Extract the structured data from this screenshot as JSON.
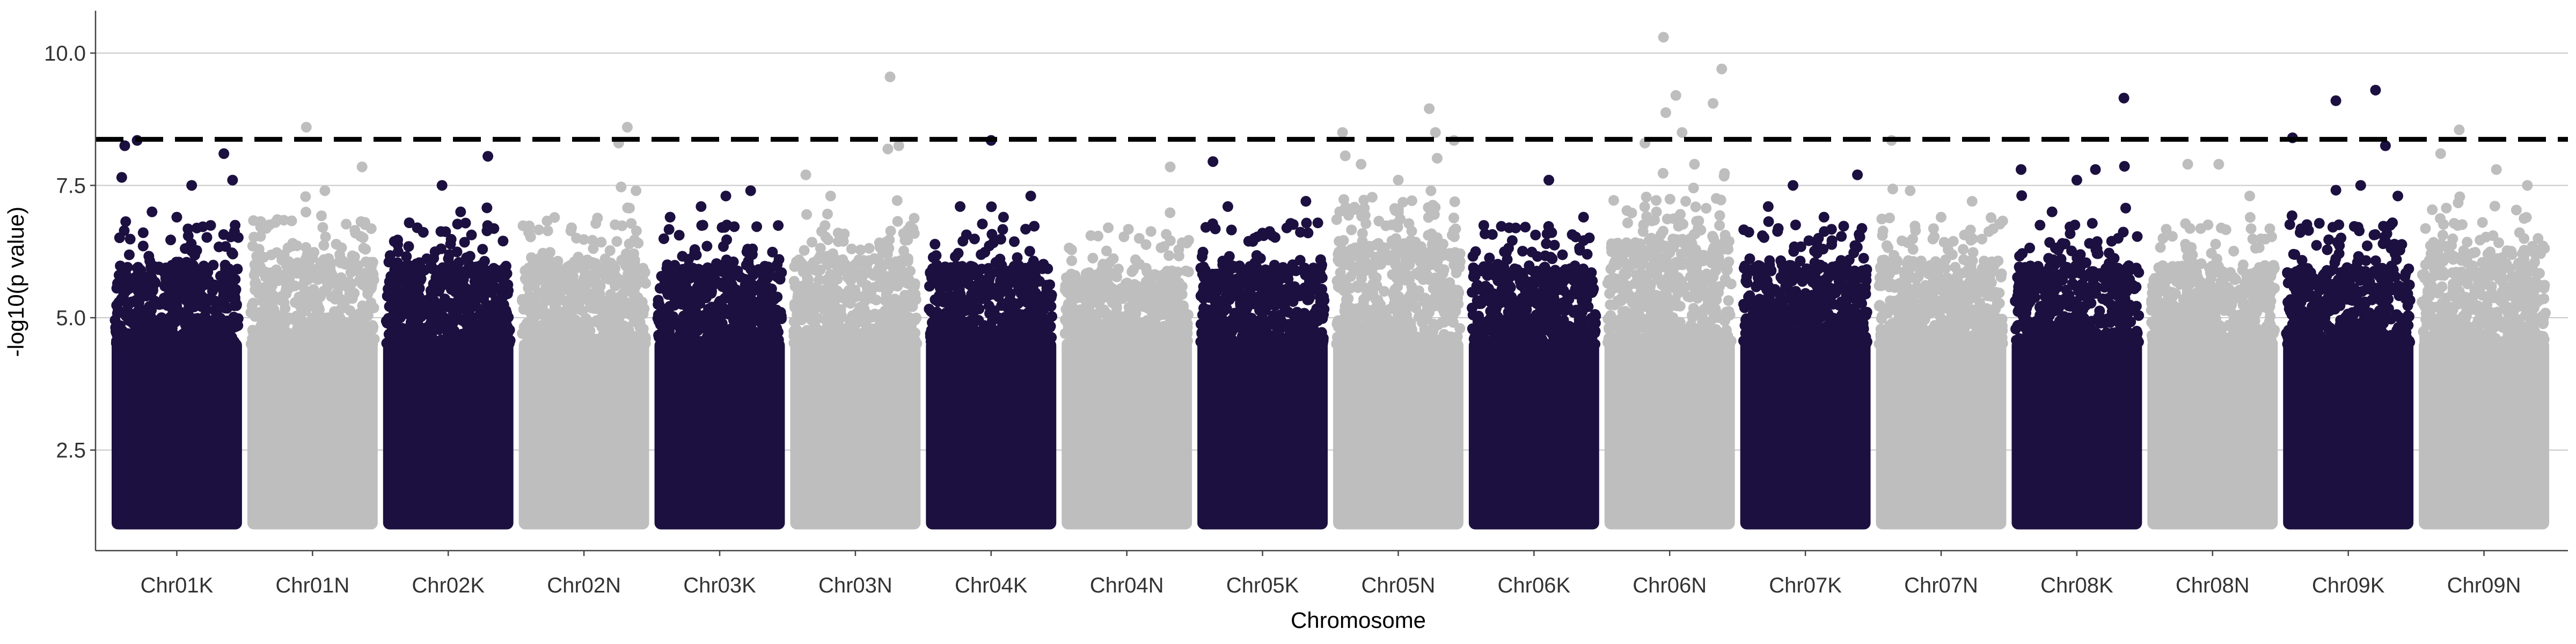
{
  "chart_data": {
    "type": "scatter",
    "subtype": "manhattan",
    "title": "",
    "xlabel": "Chromosome",
    "ylabel": "-log10(p value)",
    "ylim": [
      0.6,
      10.8
    ],
    "y_ticks": [
      2.5,
      5.0,
      7.5,
      10.0
    ],
    "y_tick_labels": [
      "2.5",
      "5.0",
      "7.5",
      "10.0"
    ],
    "grid": "horizontal major lines only",
    "legend": "none",
    "threshold": 8.37,
    "threshold_style": "dashed black line",
    "colors": {
      "dark": "#1c1040",
      "light": "#bebebe",
      "threshold": "#000000",
      "grid": "#c8c8c8",
      "axis": "#444444"
    },
    "chromosomes": [
      {
        "label": "Chr01K",
        "color": "dark",
        "band_top": 5.5,
        "peaks": [
          [
            0.08,
            8.25
          ],
          [
            0.18,
            8.35
          ],
          [
            0.62,
            7.5
          ],
          [
            0.88,
            8.1
          ],
          [
            0.95,
            7.6
          ],
          [
            0.3,
            7.0
          ],
          [
            0.5,
            6.9
          ]
        ]
      },
      {
        "label": "Chr01N",
        "color": "light",
        "band_top": 5.7,
        "peaks": [
          [
            0.45,
            8.6
          ],
          [
            0.9,
            7.85
          ],
          [
            0.6,
            7.4
          ],
          [
            0.2,
            6.8
          ]
        ]
      },
      {
        "label": "Chr02K",
        "color": "dark",
        "band_top": 5.5,
        "peaks": [
          [
            0.45,
            7.5
          ],
          [
            0.82,
            8.05
          ],
          [
            0.6,
            7.0
          ],
          [
            0.25,
            6.7
          ]
        ]
      },
      {
        "label": "Chr02N",
        "color": "light",
        "band_top": 5.6,
        "peaks": [
          [
            0.85,
            8.6
          ],
          [
            0.78,
            8.3
          ],
          [
            0.92,
            7.4
          ],
          [
            0.4,
            6.7
          ]
        ]
      },
      {
        "label": "Chr03K",
        "color": "dark",
        "band_top": 5.5,
        "peaks": [
          [
            0.55,
            7.3
          ],
          [
            0.35,
            7.1
          ],
          [
            0.75,
            7.4
          ],
          [
            0.1,
            6.9
          ]
        ]
      },
      {
        "label": "Chr03N",
        "color": "light",
        "band_top": 5.6,
        "peaks": [
          [
            0.78,
            9.55
          ],
          [
            0.85,
            8.25
          ],
          [
            0.1,
            7.7
          ],
          [
            0.3,
            7.3
          ]
        ]
      },
      {
        "label": "Chr04K",
        "color": "dark",
        "band_top": 5.5,
        "peaks": [
          [
            0.5,
            8.35
          ],
          [
            0.82,
            7.3
          ],
          [
            0.25,
            7.1
          ],
          [
            0.6,
            6.9
          ]
        ]
      },
      {
        "label": "Chr04N",
        "color": "light",
        "band_top": 5.4,
        "peaks": [
          [
            0.85,
            7.85
          ],
          [
            0.35,
            6.7
          ],
          [
            0.6,
            6.5
          ]
        ]
      },
      {
        "label": "Chr05K",
        "color": "dark",
        "band_top": 5.5,
        "peaks": [
          [
            0.1,
            7.95
          ],
          [
            0.85,
            7.2
          ],
          [
            0.22,
            7.1
          ],
          [
            0.5,
            6.6
          ]
        ]
      },
      {
        "label": "Chr05N",
        "color": "light",
        "band_top": 6.0,
        "peaks": [
          [
            0.05,
            8.5
          ],
          [
            0.75,
            8.95
          ],
          [
            0.8,
            8.5
          ],
          [
            0.95,
            8.35
          ],
          [
            0.2,
            7.9
          ],
          [
            0.5,
            7.6
          ]
        ]
      },
      {
        "label": "Chr06K",
        "color": "dark",
        "band_top": 5.5,
        "peaks": [
          [
            0.62,
            7.6
          ],
          [
            0.9,
            6.9
          ],
          [
            0.3,
            6.7
          ]
        ]
      },
      {
        "label": "Chr06N",
        "color": "light",
        "band_top": 6.0,
        "peaks": [
          [
            0.45,
            10.3
          ],
          [
            0.55,
            9.2
          ],
          [
            0.92,
            9.7
          ],
          [
            0.85,
            9.05
          ],
          [
            0.6,
            8.5
          ],
          [
            0.3,
            8.3
          ],
          [
            0.7,
            7.9
          ]
        ]
      },
      {
        "label": "Chr07K",
        "color": "dark",
        "band_top": 5.5,
        "peaks": [
          [
            0.4,
            7.5
          ],
          [
            0.92,
            7.7
          ],
          [
            0.2,
            7.1
          ],
          [
            0.65,
            6.9
          ]
        ]
      },
      {
        "label": "Chr07N",
        "color": "light",
        "band_top": 5.6,
        "peaks": [
          [
            0.1,
            8.35
          ],
          [
            0.25,
            7.4
          ],
          [
            0.75,
            7.2
          ],
          [
            0.5,
            6.9
          ]
        ]
      },
      {
        "label": "Chr08K",
        "color": "dark",
        "band_top": 5.5,
        "peaks": [
          [
            0.05,
            7.8
          ],
          [
            0.88,
            9.15
          ],
          [
            0.5,
            7.6
          ],
          [
            0.65,
            7.8
          ],
          [
            0.3,
            7.0
          ]
        ]
      },
      {
        "label": "Chr08N",
        "color": "light",
        "band_top": 5.5,
        "peaks": [
          [
            0.3,
            7.9
          ],
          [
            0.55,
            7.9
          ],
          [
            0.8,
            7.3
          ],
          [
            0.1,
            6.5
          ]
        ]
      },
      {
        "label": "Chr09K",
        "color": "dark",
        "band_top": 5.5,
        "peaks": [
          [
            0.05,
            8.4
          ],
          [
            0.4,
            9.1
          ],
          [
            0.72,
            9.3
          ],
          [
            0.8,
            8.25
          ],
          [
            0.6,
            7.5
          ],
          [
            0.9,
            7.3
          ]
        ]
      },
      {
        "label": "Chr09N",
        "color": "light",
        "band_top": 5.8,
        "peaks": [
          [
            0.3,
            8.55
          ],
          [
            0.15,
            8.1
          ],
          [
            0.6,
            7.8
          ],
          [
            0.85,
            7.5
          ]
        ]
      }
    ]
  }
}
